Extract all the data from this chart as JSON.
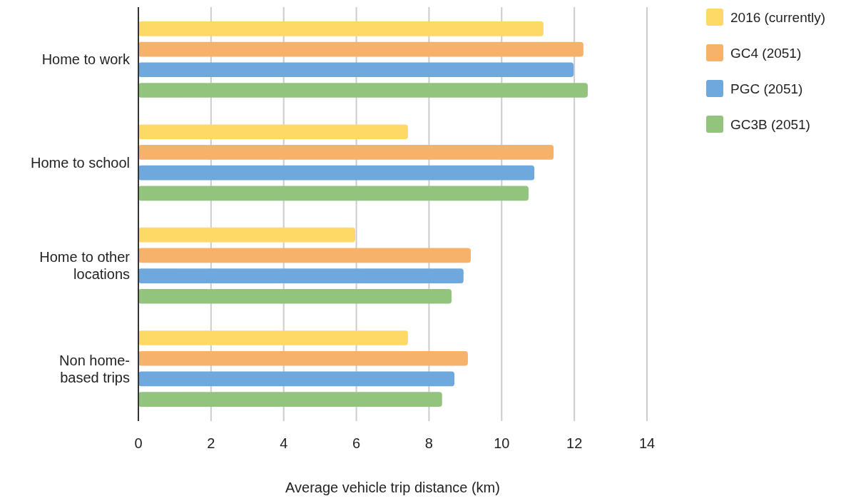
{
  "chart_data": {
    "type": "bar",
    "orientation": "horizontal",
    "xlabel": "Average vehicle trip distance (km)",
    "categories": [
      "Home to work",
      "Home to school",
      "Home to other locations",
      "Non home-based trips"
    ],
    "series": [
      {
        "name": "2016 (currently)",
        "color": "#ffd966",
        "values": [
          11.15,
          7.42,
          5.97,
          7.42
        ]
      },
      {
        "name": "GC4 (2051)",
        "color": "#f6b26b",
        "values": [
          12.25,
          11.43,
          9.15,
          9.07
        ]
      },
      {
        "name": "PGC (2051)",
        "color": "#6fa8dc",
        "values": [
          11.98,
          10.9,
          8.95,
          8.7
        ]
      },
      {
        "name": "GC3B (2051)",
        "color": "#93c47d",
        "values": [
          12.37,
          10.74,
          8.62,
          8.36
        ]
      }
    ],
    "xlim": [
      0,
      14
    ],
    "xticks": [
      0,
      2,
      4,
      6,
      8,
      10,
      12,
      14
    ],
    "grid": "x",
    "legend": "top right"
  }
}
